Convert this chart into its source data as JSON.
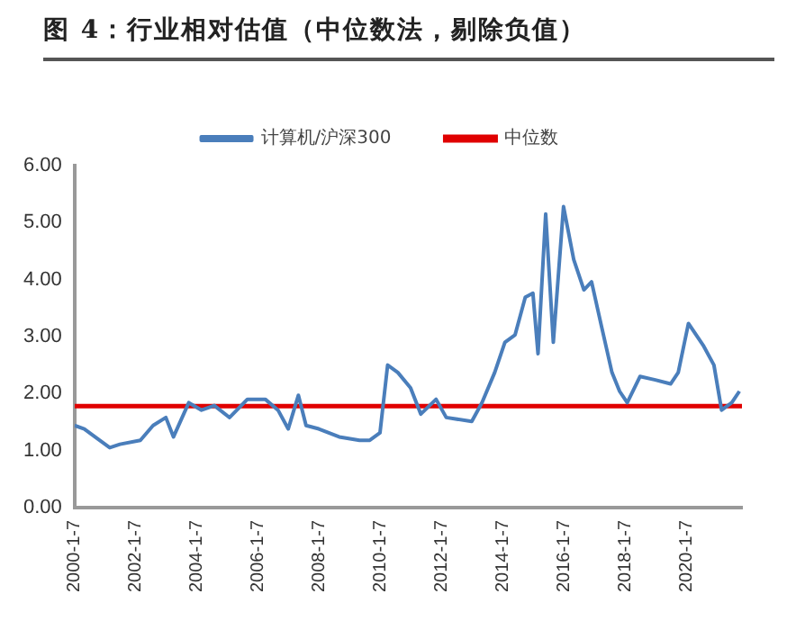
{
  "chart_data": {
    "type": "line",
    "title": "图 4：行业相对估值（中位数法，剔除负值）",
    "series": [
      {
        "name": "计算机/沪深300",
        "color": "#4a7ebb",
        "x": [
          "2000-01-07",
          "2000-05",
          "2000-11",
          "2001-03",
          "2001-07",
          "2002-03",
          "2002-08",
          "2003-01",
          "2003-04",
          "2003-10",
          "2004-03",
          "2004-08",
          "2005-02",
          "2005-09",
          "2006-04",
          "2006-09",
          "2007-01",
          "2007-05",
          "2007-08",
          "2008-01",
          "2008-09",
          "2009-05",
          "2009-09",
          "2010-01",
          "2010-04",
          "2010-08",
          "2011-01",
          "2011-05",
          "2011-11",
          "2012-03",
          "2013-01",
          "2013-05",
          "2013-10",
          "2014-02",
          "2014-06",
          "2014-10",
          "2015-01",
          "2015-03",
          "2015-06",
          "2015-09",
          "2016-01",
          "2016-05",
          "2016-09",
          "2016-12",
          "2017-04",
          "2017-08",
          "2017-11",
          "2018-02",
          "2018-07",
          "2019-01",
          "2019-07",
          "2019-10",
          "2020-02",
          "2020-08",
          "2020-12",
          "2021-03",
          "2021-07",
          "2021-10"
        ],
        "values": [
          1.44,
          1.38,
          1.18,
          1.05,
          1.11,
          1.18,
          1.44,
          1.58,
          1.24,
          1.84,
          1.71,
          1.79,
          1.58,
          1.9,
          1.9,
          1.71,
          1.38,
          1.97,
          1.44,
          1.38,
          1.24,
          1.18,
          1.18,
          1.31,
          2.5,
          2.37,
          2.1,
          1.64,
          1.9,
          1.58,
          1.51,
          1.84,
          2.37,
          2.9,
          3.03,
          3.69,
          3.76,
          2.7,
          5.15,
          2.9,
          5.28,
          4.35,
          3.82,
          3.96,
          3.16,
          2.37,
          2.04,
          1.84,
          2.3,
          2.24,
          2.17,
          2.37,
          3.23,
          2.83,
          2.5,
          1.71,
          1.84,
          2.04
        ]
      }
    ],
    "ref_lines": [
      {
        "axis": "y",
        "value": 1.78,
        "label": "中位数",
        "color": "#e00000"
      }
    ],
    "xlim": [
      "2000-01-07",
      "2021-11"
    ],
    "xticks": [
      {
        "value": "2000-01-07",
        "label": "2000-1-7"
      },
      {
        "value": "2002-01-07",
        "label": "2002-1-7"
      },
      {
        "value": "2004-01-07",
        "label": "2004-1-7"
      },
      {
        "value": "2006-01-07",
        "label": "2006-1-7"
      },
      {
        "value": "2008-01-07",
        "label": "2008-1-7"
      },
      {
        "value": "2010-01-07",
        "label": "2010-1-7"
      },
      {
        "value": "2012-01-07",
        "label": "2012-1-7"
      },
      {
        "value": "2014-01-07",
        "label": "2014-1-7"
      },
      {
        "value": "2016-01-07",
        "label": "2016-1-7"
      },
      {
        "value": "2018-01-07",
        "label": "2018-1-7"
      },
      {
        "value": "2020-01-07",
        "label": "2020-1-7"
      }
    ],
    "ylim": [
      0,
      6
    ],
    "yticks": [
      {
        "value": 0,
        "label": "0.00"
      },
      {
        "value": 1,
        "label": "1.00"
      },
      {
        "value": 2,
        "label": "2.00"
      },
      {
        "value": 3,
        "label": "3.00"
      },
      {
        "value": 4,
        "label": "4.00"
      },
      {
        "value": 5,
        "label": "5.00"
      },
      {
        "value": 6,
        "label": "6.00"
      }
    ],
    "grid": false,
    "legend": "top",
    "marker": "none",
    "line_style": "solid"
  }
}
